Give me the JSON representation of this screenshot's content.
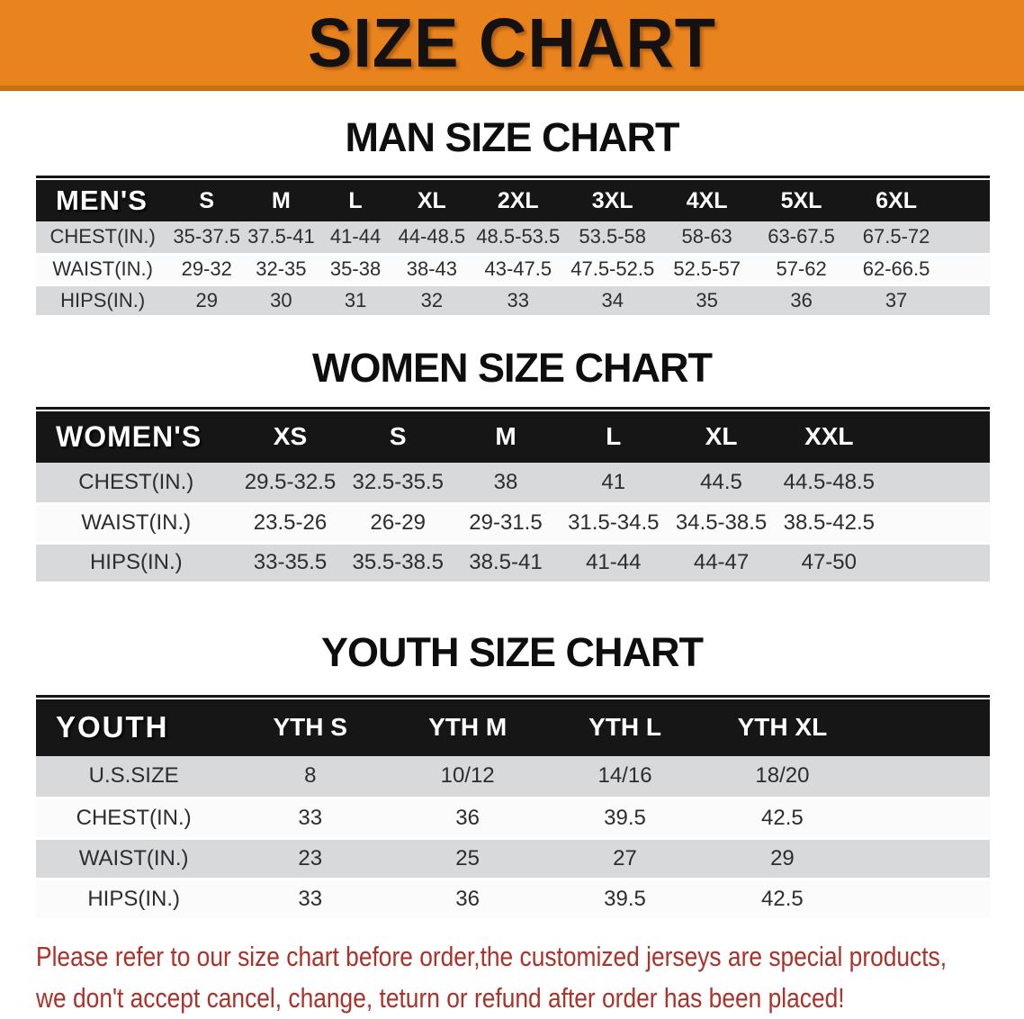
{
  "banner": {
    "title": "SIZE CHART"
  },
  "colors": {
    "banner_bg": "#E9831E",
    "banner_border": "#C8700F",
    "header_band_bg": "#161616",
    "row_gray": "#D8D9DB",
    "row_white": "#FBFBFB",
    "disclaimer_red": "#AC3129"
  },
  "sections": [
    {
      "heading": "MAN SIZE CHART",
      "table": {
        "label": "MEN'S",
        "columns": [
          "S",
          "M",
          "L",
          "XL",
          "2XL",
          "3XL",
          "4XL",
          "5XL",
          "6XL"
        ],
        "rows": [
          {
            "label": "CHEST(IN.)",
            "values": [
              "35-37.5",
              "37.5-41",
              "41-44",
              "44-48.5",
              "48.5-53.5",
              "53.5-58",
              "58-63",
              "63-67.5",
              "67.5-72"
            ]
          },
          {
            "label": "WAIST(IN.)",
            "values": [
              "29-32",
              "32-35",
              "35-38",
              "38-43",
              "43-47.5",
              "47.5-52.5",
              "52.5-57",
              "57-62",
              "62-66.5"
            ]
          },
          {
            "label": "HIPS(IN.)",
            "values": [
              "29",
              "30",
              "31",
              "32",
              "33",
              "34",
              "35",
              "36",
              "37"
            ]
          }
        ]
      }
    },
    {
      "heading": "WOMEN SIZE CHART",
      "table": {
        "label": "WOMEN'S",
        "columns": [
          "XS",
          "S",
          "M",
          "L",
          "XL",
          "XXL"
        ],
        "rows": [
          {
            "label": "CHEST(IN.)",
            "values": [
              "29.5-32.5",
              "32.5-35.5",
              "38",
              "41",
              "44.5",
              "44.5-48.5"
            ]
          },
          {
            "label": "WAIST(IN.)",
            "values": [
              "23.5-26",
              "26-29",
              "29-31.5",
              "31.5-34.5",
              "34.5-38.5",
              "38.5-42.5"
            ]
          },
          {
            "label": "HIPS(IN.)",
            "values": [
              "33-35.5",
              "35.5-38.5",
              "38.5-41",
              "41-44",
              "44-47",
              "47-50"
            ]
          }
        ]
      }
    },
    {
      "heading": "YOUTH SIZE CHART",
      "table": {
        "label": "YOUTH",
        "columns": [
          "YTH S",
          "YTH M",
          "YTH L",
          "YTH XL"
        ],
        "rows": [
          {
            "label": "U.S.SIZE",
            "values": [
              "8",
              "10/12",
              "14/16",
              "18/20"
            ]
          },
          {
            "label": "CHEST(IN.)",
            "values": [
              "33",
              "36",
              "39.5",
              "42.5"
            ]
          },
          {
            "label": "WAIST(IN.)",
            "values": [
              "23",
              "25",
              "27",
              "29"
            ]
          },
          {
            "label": "HIPS(IN.)",
            "values": [
              "33",
              "36",
              "39.5",
              "42.5"
            ]
          }
        ]
      }
    }
  ],
  "disclaimer": {
    "line1": "Please refer to our size chart before order,the customized jerseys are special products,",
    "line2": "we don't accept cancel, change, teturn or refund after order has been placed!"
  }
}
